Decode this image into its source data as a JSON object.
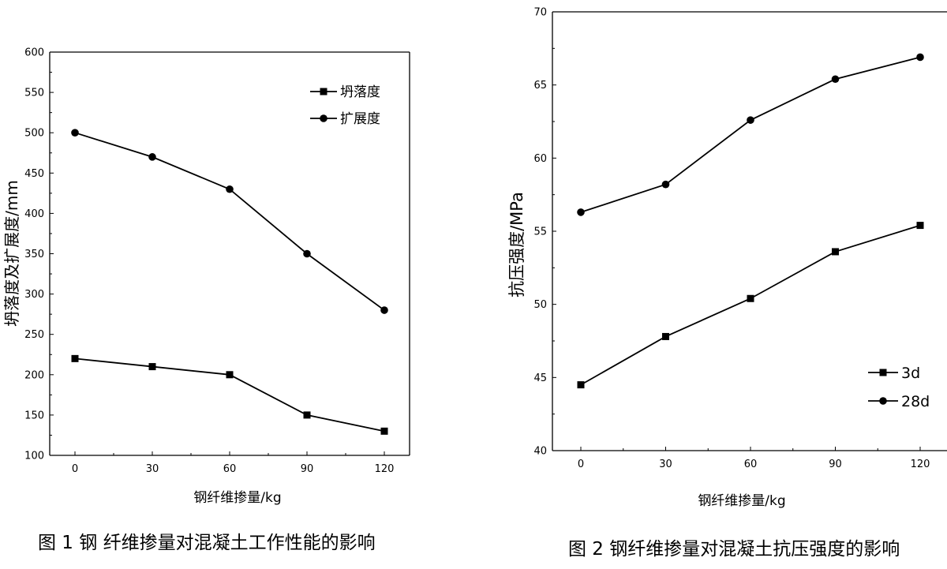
{
  "chart_data": [
    {
      "type": "line",
      "title": "",
      "xlabel": "钢纤维掺量/kg",
      "ylabel": "坍落度及扩展度/mm",
      "x": [
        0,
        30,
        60,
        90,
        120
      ],
      "x_tick_labels": [
        "0",
        "30",
        "60",
        "90",
        "120"
      ],
      "ylim": [
        100,
        600
      ],
      "y_ticks": [
        100,
        150,
        200,
        250,
        300,
        350,
        400,
        450,
        500,
        550,
        600
      ],
      "grid": false,
      "legend_position": "top-right",
      "series": [
        {
          "name": "坍落度",
          "marker": "square",
          "values": [
            220,
            210,
            200,
            150,
            130
          ]
        },
        {
          "name": "扩展度",
          "marker": "circle",
          "values": [
            500,
            470,
            430,
            350,
            280
          ]
        }
      ]
    },
    {
      "type": "line",
      "title": "",
      "xlabel": "钢纤维掺量/kg",
      "ylabel": "抗压强度/MPa",
      "x": [
        0,
        30,
        60,
        90,
        120
      ],
      "x_tick_labels": [
        "0",
        "30",
        "60",
        "90",
        "120"
      ],
      "ylim": [
        40,
        70
      ],
      "y_ticks": [
        40,
        45,
        50,
        55,
        60,
        65,
        70
      ],
      "grid": false,
      "legend_position": "bottom-right",
      "series": [
        {
          "name": "3d",
          "marker": "square",
          "values": [
            44.5,
            47.8,
            50.4,
            53.6,
            55.4
          ]
        },
        {
          "name": "28d",
          "marker": "circle",
          "values": [
            56.3,
            58.2,
            62.6,
            65.4,
            66.9
          ]
        }
      ]
    }
  ],
  "captions": {
    "figure1": "图 1 钢 纤维掺量对混凝土工作性能的影响",
    "figure2": "图 2 钢纤维掺量对混凝土抗压强度的影响"
  }
}
